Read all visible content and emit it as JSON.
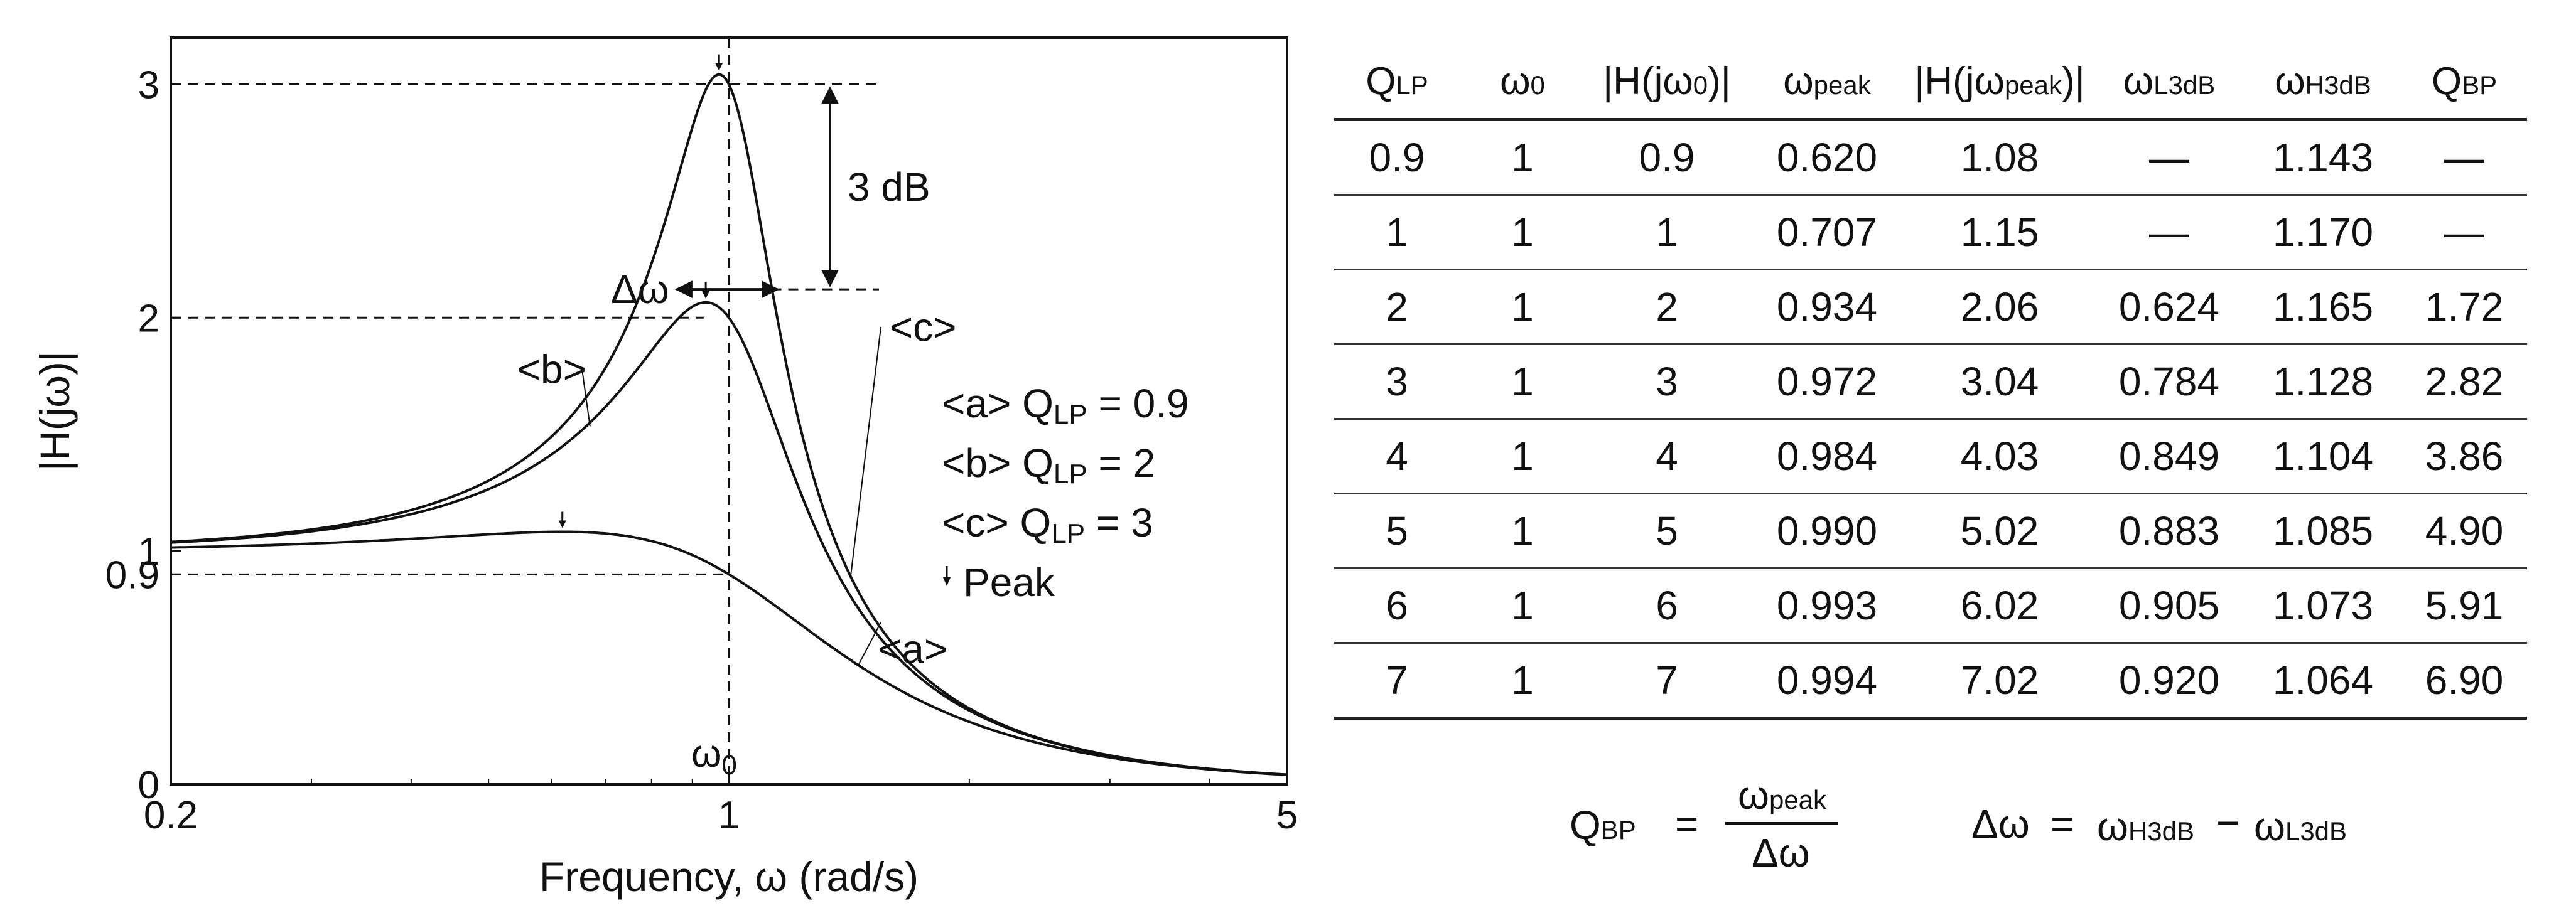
{
  "chart_data": {
    "type": "line",
    "xlabel": "Frequency, ω (rad/s)",
    "ylabel": "|H(jω)|",
    "xscale": "log",
    "xlim": [
      0.2,
      5
    ],
    "ylim": [
      0,
      3.2
    ],
    "x_ticks": [
      {
        "v": 0.2,
        "label": "0.2"
      },
      {
        "v": 1,
        "label": "1"
      },
      {
        "v": 5,
        "label": "5"
      }
    ],
    "y_ticks": [
      {
        "v": 0,
        "label": "0"
      },
      {
        "v": 0.9,
        "label": "0.9"
      },
      {
        "v": 1,
        "label": "1"
      },
      {
        "v": 2,
        "label": "2"
      },
      {
        "v": 3,
        "label": "3"
      }
    ],
    "omega0_label": "ω0",
    "series": [
      {
        "name": "<a>",
        "Q": 0.9,
        "tag": "<a>",
        "tag_x": 1.7,
        "tag_y": 0.52
      },
      {
        "name": "<b>",
        "Q": 2,
        "tag": "<b>",
        "tag_x": 0.6,
        "tag_y": 1.72
      },
      {
        "name": "<c>",
        "Q": 3,
        "tag": "<c>",
        "tag_x": 1.75,
        "tag_y": 1.9
      }
    ],
    "legend": {
      "position": "right",
      "entries": [
        {
          "prefix": "<a> Q",
          "sub": "LP",
          "suffix": " = 0.9"
        },
        {
          "prefix": "<b> Q",
          "sub": "LP",
          "suffix": " = 2"
        },
        {
          "prefix": "<c> Q",
          "sub": "LP",
          "suffix": " = 3"
        },
        {
          "prefix": "Peak",
          "sub": "",
          "suffix": "",
          "marker": "arrow"
        }
      ]
    },
    "annotations": {
      "db3": "3 dB",
      "delta_omega": "Δω"
    }
  },
  "table": {
    "headers": [
      {
        "main": "Q",
        "sub": "LP",
        "after": ""
      },
      {
        "main": "ω",
        "sub": "0",
        "after": ""
      },
      {
        "main": "|H(jω",
        "sub": "0",
        "after": ")|"
      },
      {
        "main": "ω",
        "sub": "peak",
        "after": ""
      },
      {
        "main": "|H(jω",
        "sub": "peak",
        "after": ")|"
      },
      {
        "main": "ω",
        "sub": "L3dB",
        "after": ""
      },
      {
        "main": "ω",
        "sub": "H3dB",
        "after": ""
      },
      {
        "main": "Q",
        "sub": "BP",
        "after": ""
      }
    ],
    "rows": [
      [
        "0.9",
        "1",
        "0.9",
        "0.620",
        "1.08",
        "—",
        "1.143",
        "—"
      ],
      [
        "1",
        "1",
        "1",
        "0.707",
        "1.15",
        "—",
        "1.170",
        "—"
      ],
      [
        "2",
        "1",
        "2",
        "0.934",
        "2.06",
        "0.624",
        "1.165",
        "1.72"
      ],
      [
        "3",
        "1",
        "3",
        "0.972",
        "3.04",
        "0.784",
        "1.128",
        "2.82"
      ],
      [
        "4",
        "1",
        "4",
        "0.984",
        "4.03",
        "0.849",
        "1.104",
        "3.86"
      ],
      [
        "5",
        "1",
        "5",
        "0.990",
        "5.02",
        "0.883",
        "1.085",
        "4.90"
      ],
      [
        "6",
        "1",
        "6",
        "0.993",
        "6.02",
        "0.905",
        "1.073",
        "5.91"
      ],
      [
        "7",
        "1",
        "7",
        "0.994",
        "7.02",
        "0.920",
        "1.064",
        "6.90"
      ]
    ]
  },
  "formulas": {
    "qbp_lhs": "Q",
    "qbp_lhs_sub": "BP",
    "eq": "=",
    "qbp_num": "ω",
    "qbp_num_sub": "peak",
    "qbp_den": "Δω",
    "dw_lhs": "Δω",
    "dw_a": "ω",
    "dw_a_sub": "H3dB",
    "minus": "−",
    "dw_b": "ω",
    "dw_b_sub": "L3dB"
  }
}
